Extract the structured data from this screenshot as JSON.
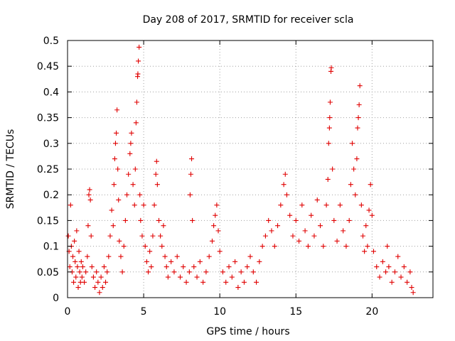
{
  "chart_data": {
    "type": "scatter",
    "title": "Day 208 of 2017, SRMTID for receiver scla",
    "xlabel": "GPS time / hours",
    "ylabel": "SRMTID / TECUs",
    "xlim": [
      0,
      24
    ],
    "ylim": [
      0,
      0.5
    ],
    "x_ticks": [
      0,
      5,
      10,
      15,
      20
    ],
    "x_tick_labels": [
      "0",
      "5",
      "10",
      "15",
      "20"
    ],
    "y_ticks": [
      0,
      0.05,
      0.1,
      0.15,
      0.2,
      0.25,
      0.3,
      0.35,
      0.4,
      0.45,
      0.5
    ],
    "y_tick_labels": [
      "0",
      "0.05",
      "0.1",
      "0.15",
      "0.2",
      "0.25",
      "0.3",
      "0.35",
      "0.4",
      "0.45",
      "0.5"
    ],
    "grid": true,
    "marker": "+",
    "color": "#e00000",
    "series": [
      {
        "name": "SRMTID",
        "points": [
          [
            0.05,
            0.12
          ],
          [
            0.1,
            0.09
          ],
          [
            0.15,
            0.06
          ],
          [
            0.2,
            0.18
          ],
          [
            0.25,
            0.1
          ],
          [
            0.3,
            0.05
          ],
          [
            0.35,
            0.08
          ],
          [
            0.4,
            0.03
          ],
          [
            0.45,
            0.11
          ],
          [
            0.5,
            0.07
          ],
          [
            0.55,
            0.04
          ],
          [
            0.6,
            0.13
          ],
          [
            0.65,
            0.06
          ],
          [
            0.7,
            0.02
          ],
          [
            0.75,
            0.09
          ],
          [
            0.8,
            0.05
          ],
          [
            0.85,
            0.03
          ],
          [
            0.9,
            0.07
          ],
          [
            0.95,
            0.04
          ],
          [
            1.0,
            0.06
          ],
          [
            1.1,
            0.03
          ],
          [
            1.2,
            0.05
          ],
          [
            1.3,
            0.08
          ],
          [
            1.35,
            0.14
          ],
          [
            1.4,
            0.2
          ],
          [
            1.45,
            0.21
          ],
          [
            1.5,
            0.19
          ],
          [
            1.55,
            0.12
          ],
          [
            1.6,
            0.06
          ],
          [
            1.7,
            0.04
          ],
          [
            1.8,
            0.02
          ],
          [
            1.9,
            0.05
          ],
          [
            2.0,
            0.03
          ],
          [
            2.1,
            0.01
          ],
          [
            2.2,
            0.04
          ],
          [
            2.3,
            0.02
          ],
          [
            2.4,
            0.06
          ],
          [
            2.5,
            0.03
          ],
          [
            2.6,
            0.05
          ],
          [
            2.7,
            0.08
          ],
          [
            2.8,
            0.12
          ],
          [
            2.9,
            0.17
          ],
          [
            3.0,
            0.14
          ],
          [
            3.05,
            0.22
          ],
          [
            3.1,
            0.27
          ],
          [
            3.15,
            0.3
          ],
          [
            3.2,
            0.32
          ],
          [
            3.25,
            0.365
          ],
          [
            3.3,
            0.25
          ],
          [
            3.35,
            0.19
          ],
          [
            3.4,
            0.11
          ],
          [
            3.5,
            0.08
          ],
          [
            3.6,
            0.05
          ],
          [
            3.7,
            0.1
          ],
          [
            3.8,
            0.15
          ],
          [
            3.9,
            0.2
          ],
          [
            4.0,
            0.24
          ],
          [
            4.1,
            0.28
          ],
          [
            4.15,
            0.3
          ],
          [
            4.2,
            0.32
          ],
          [
            4.3,
            0.22
          ],
          [
            4.4,
            0.18
          ],
          [
            4.45,
            0.25
          ],
          [
            4.5,
            0.34
          ],
          [
            4.55,
            0.38
          ],
          [
            4.6,
            0.43
          ],
          [
            4.62,
            0.435
          ],
          [
            4.65,
            0.46
          ],
          [
            4.7,
            0.487
          ],
          [
            4.75,
            0.2
          ],
          [
            4.8,
            0.15
          ],
          [
            4.9,
            0.12
          ],
          [
            5.0,
            0.18
          ],
          [
            5.1,
            0.1
          ],
          [
            5.2,
            0.07
          ],
          [
            5.3,
            0.05
          ],
          [
            5.4,
            0.09
          ],
          [
            5.5,
            0.06
          ],
          [
            5.6,
            0.12
          ],
          [
            5.7,
            0.18
          ],
          [
            5.8,
            0.24
          ],
          [
            5.85,
            0.265
          ],
          [
            5.9,
            0.22
          ],
          [
            6.0,
            0.15
          ],
          [
            6.1,
            0.12
          ],
          [
            6.2,
            0.1
          ],
          [
            6.3,
            0.14
          ],
          [
            6.4,
            0.08
          ],
          [
            6.5,
            0.06
          ],
          [
            6.6,
            0.04
          ],
          [
            6.8,
            0.07
          ],
          [
            7.0,
            0.05
          ],
          [
            7.2,
            0.08
          ],
          [
            7.4,
            0.04
          ],
          [
            7.6,
            0.06
          ],
          [
            7.8,
            0.03
          ],
          [
            8.0,
            0.05
          ],
          [
            8.05,
            0.2
          ],
          [
            8.1,
            0.24
          ],
          [
            8.15,
            0.27
          ],
          [
            8.2,
            0.15
          ],
          [
            8.3,
            0.06
          ],
          [
            8.5,
            0.04
          ],
          [
            8.7,
            0.07
          ],
          [
            8.9,
            0.03
          ],
          [
            9.1,
            0.05
          ],
          [
            9.3,
            0.08
          ],
          [
            9.5,
            0.11
          ],
          [
            9.6,
            0.14
          ],
          [
            9.7,
            0.16
          ],
          [
            9.8,
            0.18
          ],
          [
            9.9,
            0.13
          ],
          [
            10.0,
            0.09
          ],
          [
            10.2,
            0.05
          ],
          [
            10.4,
            0.03
          ],
          [
            10.6,
            0.06
          ],
          [
            10.8,
            0.04
          ],
          [
            11.0,
            0.07
          ],
          [
            11.2,
            0.02
          ],
          [
            11.4,
            0.05
          ],
          [
            11.6,
            0.03
          ],
          [
            11.8,
            0.06
          ],
          [
            12.0,
            0.08
          ],
          [
            12.2,
            0.05
          ],
          [
            12.4,
            0.03
          ],
          [
            12.6,
            0.07
          ],
          [
            12.8,
            0.1
          ],
          [
            13.0,
            0.12
          ],
          [
            13.2,
            0.15
          ],
          [
            13.4,
            0.13
          ],
          [
            13.6,
            0.1
          ],
          [
            13.8,
            0.14
          ],
          [
            14.0,
            0.18
          ],
          [
            14.2,
            0.22
          ],
          [
            14.3,
            0.24
          ],
          [
            14.4,
            0.2
          ],
          [
            14.6,
            0.16
          ],
          [
            14.8,
            0.12
          ],
          [
            15.0,
            0.15
          ],
          [
            15.2,
            0.11
          ],
          [
            15.4,
            0.18
          ],
          [
            15.6,
            0.13
          ],
          [
            15.8,
            0.1
          ],
          [
            16.0,
            0.16
          ],
          [
            16.2,
            0.12
          ],
          [
            16.4,
            0.19
          ],
          [
            16.6,
            0.14
          ],
          [
            16.8,
            0.1
          ],
          [
            17.0,
            0.18
          ],
          [
            17.1,
            0.23
          ],
          [
            17.15,
            0.3
          ],
          [
            17.2,
            0.33
          ],
          [
            17.22,
            0.35
          ],
          [
            17.25,
            0.38
          ],
          [
            17.3,
            0.44
          ],
          [
            17.32,
            0.447
          ],
          [
            17.4,
            0.25
          ],
          [
            17.5,
            0.15
          ],
          [
            17.7,
            0.11
          ],
          [
            17.9,
            0.18
          ],
          [
            18.1,
            0.13
          ],
          [
            18.3,
            0.1
          ],
          [
            18.5,
            0.15
          ],
          [
            18.6,
            0.22
          ],
          [
            18.7,
            0.3
          ],
          [
            18.8,
            0.25
          ],
          [
            18.9,
            0.2
          ],
          [
            19.0,
            0.27
          ],
          [
            19.05,
            0.33
          ],
          [
            19.1,
            0.35
          ],
          [
            19.15,
            0.375
          ],
          [
            19.2,
            0.412
          ],
          [
            19.3,
            0.18
          ],
          [
            19.4,
            0.12
          ],
          [
            19.5,
            0.09
          ],
          [
            19.6,
            0.14
          ],
          [
            19.7,
            0.1
          ],
          [
            19.8,
            0.17
          ],
          [
            19.9,
            0.22
          ],
          [
            20.0,
            0.16
          ],
          [
            20.1,
            0.09
          ],
          [
            20.3,
            0.06
          ],
          [
            20.5,
            0.04
          ],
          [
            20.7,
            0.07
          ],
          [
            20.9,
            0.05
          ],
          [
            21.0,
            0.1
          ],
          [
            21.1,
            0.06
          ],
          [
            21.3,
            0.03
          ],
          [
            21.5,
            0.05
          ],
          [
            21.7,
            0.08
          ],
          [
            21.9,
            0.04
          ],
          [
            22.1,
            0.06
          ],
          [
            22.3,
            0.03
          ],
          [
            22.5,
            0.05
          ],
          [
            22.6,
            0.02
          ],
          [
            22.7,
            0.01
          ]
        ]
      }
    ]
  }
}
